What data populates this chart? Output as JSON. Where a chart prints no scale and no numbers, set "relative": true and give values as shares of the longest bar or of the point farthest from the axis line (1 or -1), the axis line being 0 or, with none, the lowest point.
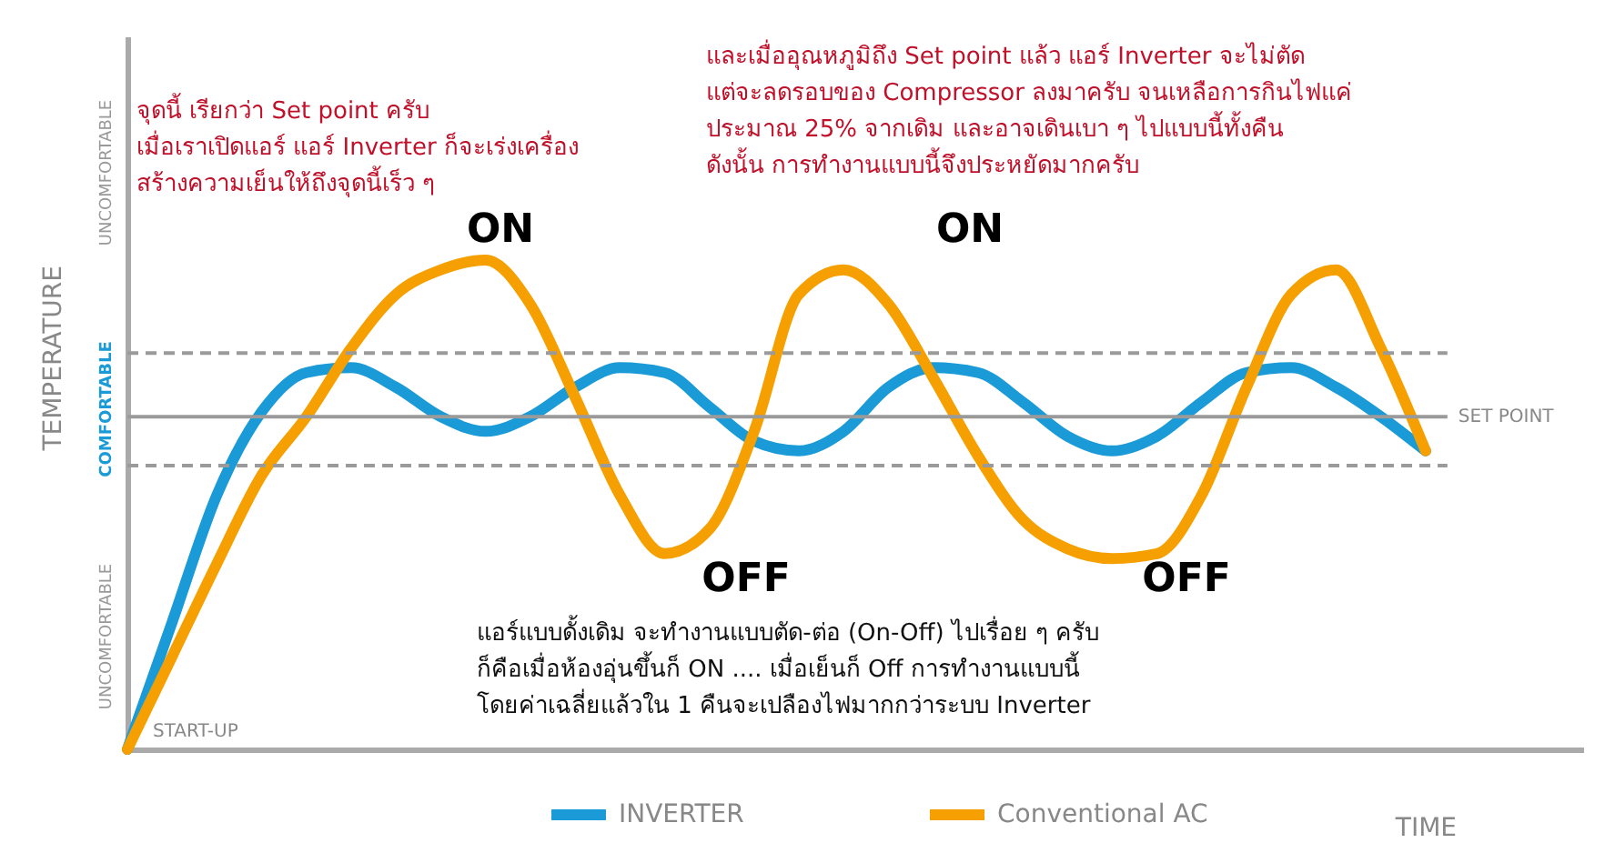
{
  "chart_data": {
    "type": "line",
    "relative": true,
    "xlabel": "TIME",
    "ylabel": "TEMPERATURE",
    "categories": [
      null,
      null,
      null,
      null,
      null,
      null,
      null,
      null,
      null,
      null,
      null,
      null,
      null,
      null,
      null,
      null,
      null,
      null,
      null,
      null,
      null,
      null,
      null,
      null,
      null,
      null,
      null,
      null,
      null,
      null
    ],
    "series": [
      {
        "name": "INVERTER",
        "color": "#1a9ad6",
        "values": [
          0,
          0.26,
          0.52,
          0.69,
          0.77,
          0.78,
          0.74,
          0.68,
          0.65,
          0.68,
          0.74,
          0.78,
          0.77,
          0.7,
          0.63,
          0.61,
          0.65,
          0.74,
          0.78,
          0.77,
          0.71,
          0.64,
          0.61,
          0.64,
          0.71,
          0.77,
          0.78,
          0.74,
          0.68,
          0.61
        ]
      },
      {
        "name": "Conventional AC",
        "color": "#f5a000",
        "values": [
          0,
          0.19,
          0.38,
          0.56,
          0.68,
          0.82,
          0.93,
          0.98,
          1.0,
          0.91,
          0.72,
          0.52,
          0.4,
          0.45,
          0.65,
          0.93,
          0.98,
          0.91,
          0.76,
          0.6,
          0.47,
          0.41,
          0.39,
          0.4,
          0.52,
          0.74,
          0.93,
          0.98,
          0.82,
          0.61
        ]
      }
    ],
    "ref_lines": [
      {
        "axis": "y",
        "value": 0.68,
        "label": "SET POINT",
        "color": "#9a9a9a",
        "line_style": "solid"
      },
      {
        "axis": "y",
        "value": 0.81,
        "label": null,
        "color": "#9a9a9a",
        "line_style": "dashed"
      },
      {
        "axis": "y",
        "value": 0.58,
        "label": null,
        "color": "#9a9a9a",
        "line_style": "dashed"
      }
    ],
    "annotations": [
      "จุดนี้  เรียกว่า Set point ครับ\nเมื่อเราเปิดแอร์  แอร์ Inverter ก็จะเร่งเครื่อง\nสร้างความเย็นให้ถึงจุดนี้เร็ว ๆ",
      "และเมื่ออุณหภูมิถึง Set point แล้ว  แอร์ Inverter จะไม่ตัด\nแต่จะลดรอบของ Compressor ลงมาครับ  จนเหลือการกินไฟแค่\nประมาณ 25% จากเดิม  และอาจเดินเบา ๆ ไปแบบนี้ทั้งคืน\nดังนั้น การทำงานแบบนี้จึงประหยัดมากครับ",
      "แอร์แบบดั้งเดิม  จะทำงานแบบตัด-ต่อ (On-Off) ไปเรื่อย ๆ ครับ\nก็คือเมื่อห้องอุ่นขึ้นก็ ON .... เมื่อเย็นก็ Off  การทำงานแบบนี้\nโดยค่าเฉลี่ยแล้วใน 1 คืนจะเปลืองไฟมากกว่าระบบ Inverter",
      "ON",
      "ON",
      "OFF",
      "OFF",
      "START-UP",
      "UNCOMFORTABLE",
      "COMFORTABLE",
      "UNCOMFORTABLE"
    ],
    "legend": "bottom",
    "line_style": "solid",
    "grid": false
  }
}
